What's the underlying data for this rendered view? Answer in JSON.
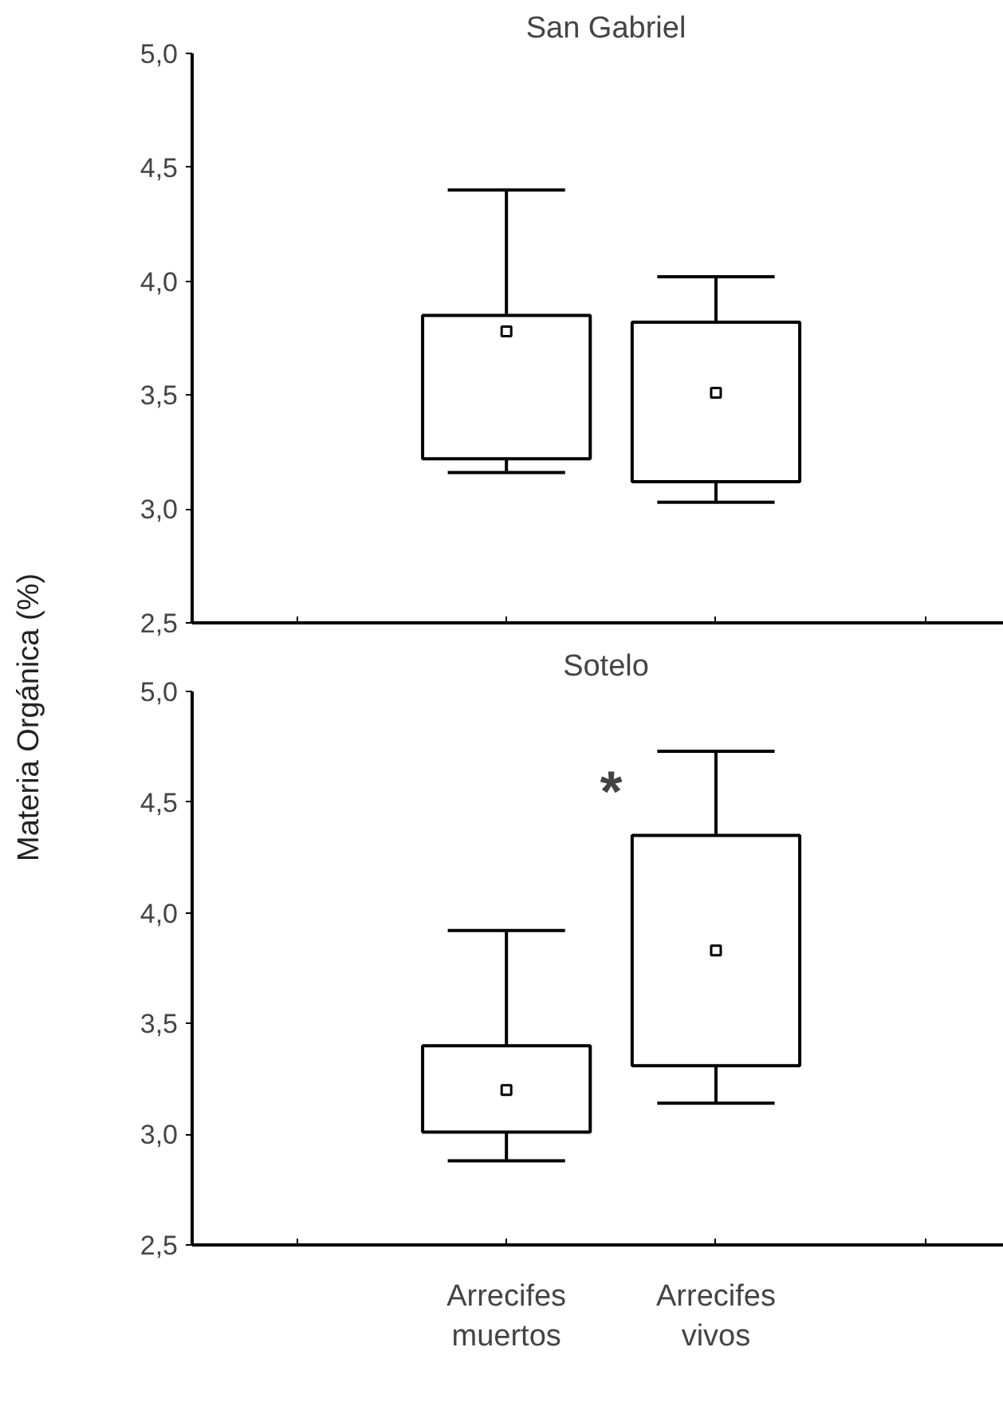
{
  "chart_data": [
    {
      "type": "box",
      "title": "San Gabriel",
      "ylabel": "Materia Orgánica (%)",
      "categories": [
        null,
        null
      ],
      "tick_labels": "y",
      "boxes": [
        {
          "low": 3.16,
          "q1": 3.22,
          "median": 3.78,
          "q3": 3.85,
          "high": 4.4
        },
        {
          "low": 3.03,
          "q1": 3.12,
          "median": 3.51,
          "q3": 3.82,
          "high": 4.02
        }
      ],
      "ylim": [
        2.5,
        5.0
      ],
      "yticks": [
        {
          "value": 2.5,
          "label": "2,5"
        },
        {
          "value": 3.0,
          "label": "3,0"
        },
        {
          "value": 3.5,
          "label": "3,5"
        },
        {
          "value": 4.0,
          "label": "4,0"
        },
        {
          "value": 4.5,
          "label": "4,5"
        },
        {
          "value": 5.0,
          "label": "5,0"
        }
      ],
      "grid": false
    },
    {
      "type": "box",
      "title": "Sotelo",
      "categories": [
        "Arrecifes muertos",
        "Arrecifes vivos"
      ],
      "boxes": [
        {
          "low": 2.88,
          "q1": 3.01,
          "median": 3.2,
          "q3": 3.4,
          "high": 3.92
        },
        {
          "low": 3.14,
          "q1": 3.31,
          "median": 3.83,
          "q3": 4.35,
          "high": 4.73
        }
      ],
      "ylim": [
        2.5,
        5.0
      ],
      "yticks": [
        {
          "value": 2.5,
          "label": "2,5"
        },
        {
          "value": 3.0,
          "label": "3,0"
        },
        {
          "value": 3.5,
          "label": "3,5"
        },
        {
          "value": 4.0,
          "label": "4,0"
        },
        {
          "value": 4.5,
          "label": "4,5"
        },
        {
          "value": 5.0,
          "label": "5,0"
        }
      ],
      "grid": false,
      "annotations": [
        "*"
      ]
    }
  ]
}
